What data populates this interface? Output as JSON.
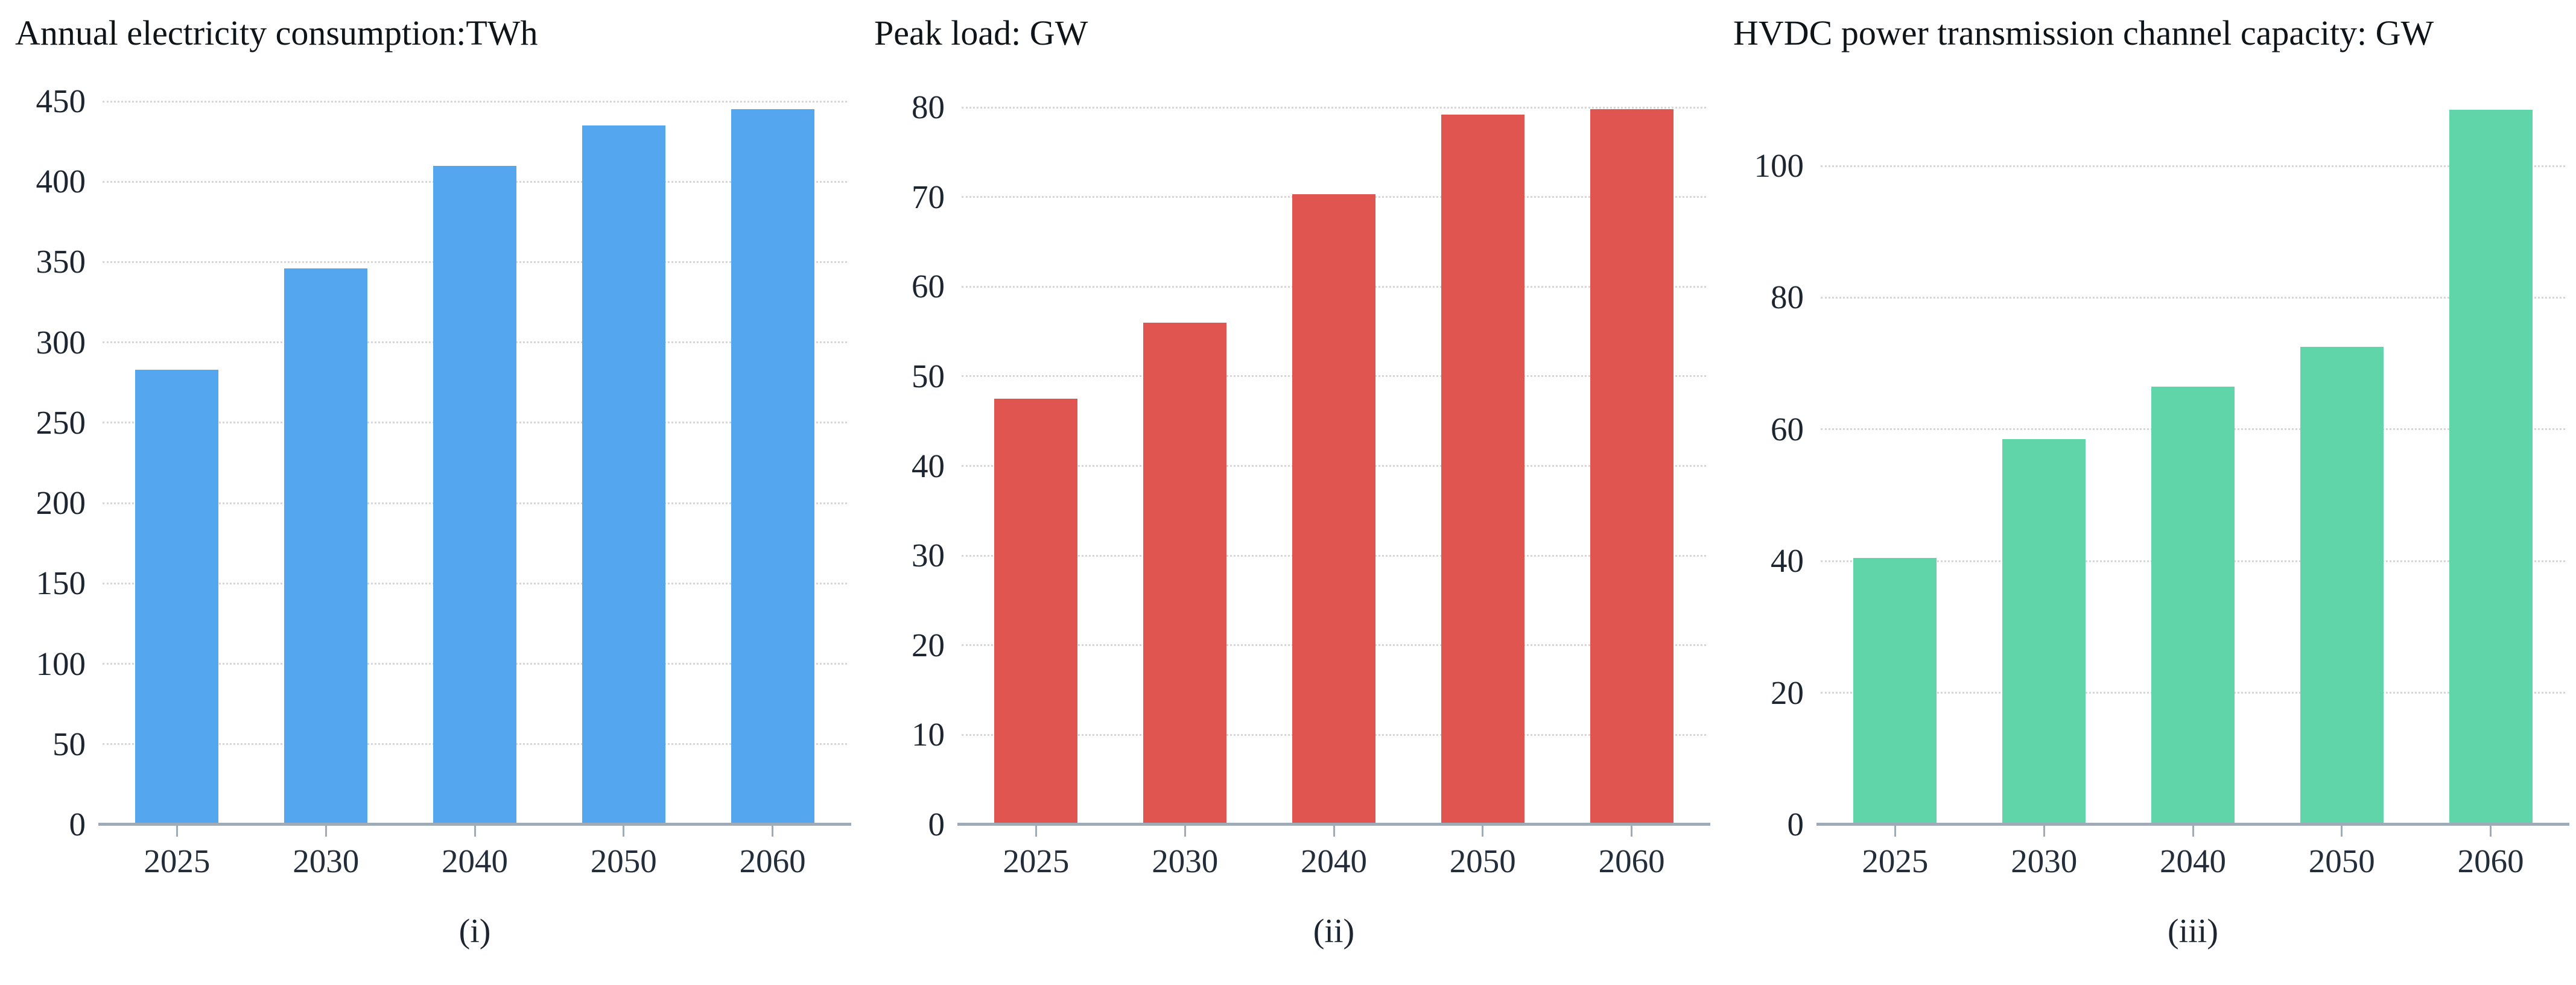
{
  "figure": {
    "description": "Three-panel bar chart figure on white background",
    "background": "#ffffff"
  },
  "colors": {
    "text": "#1d2530",
    "title_text": "#0f1419",
    "gridline": "#d7d7d7",
    "axis": "#9fabb6",
    "panel1_bar": "#54a6ee",
    "panel2_bar": "#e15551",
    "panel3_bar": "#60d5aa"
  },
  "chart_data": [
    {
      "type": "bar",
      "title": "Annual electricity consumption:TWh",
      "caption": "(i)",
      "unit": "TWh",
      "categories": [
        "2025",
        "2030",
        "2040",
        "2050",
        "2060"
      ],
      "values": [
        283,
        346,
        410,
        435,
        445
      ],
      "yticks": [
        0,
        50,
        100,
        150,
        200,
        250,
        300,
        350,
        400,
        450
      ],
      "ylim": [
        0,
        462
      ],
      "bar_color": "#54a6ee",
      "grid": "horizontal-dotted",
      "legend": "none"
    },
    {
      "type": "bar",
      "title": "Peak load: GW",
      "caption": "(ii)",
      "unit": "GW",
      "categories": [
        "2025",
        "2030",
        "2040",
        "2050",
        "2060"
      ],
      "values": [
        47.5,
        56,
        70.3,
        79.2,
        79.8
      ],
      "yticks": [
        0,
        10,
        20,
        30,
        40,
        50,
        60,
        70,
        80
      ],
      "ylim": [
        0,
        82
      ],
      "bar_color": "#e15551",
      "grid": "horizontal-dotted",
      "legend": "none"
    },
    {
      "type": "bar",
      "title": "HVDC power transmission channel capacity: GW",
      "caption": "(iii)",
      "unit": "GW",
      "categories": [
        "2025",
        "2030",
        "2040",
        "2050",
        "2060"
      ],
      "values": [
        40.5,
        58.5,
        66.5,
        72.5,
        108.5
      ],
      "yticks": [
        0,
        20,
        40,
        60,
        80,
        100
      ],
      "ylim": [
        0,
        110
      ],
      "bar_color": "#60d5aa",
      "grid": "horizontal-dotted",
      "legend": "none"
    }
  ]
}
